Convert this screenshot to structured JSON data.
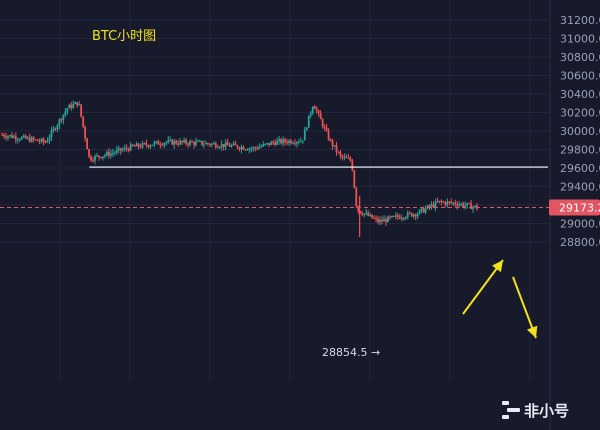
{
  "chart_data": {
    "type": "candlestick",
    "title": "BTC小时图",
    "ylim": [
      28700,
      31300
    ],
    "y_ticks": [
      31200,
      31000,
      30800,
      30600,
      30400,
      30200,
      30000,
      29800,
      29600,
      29400,
      29200,
      29000,
      28800
    ],
    "y_tick_labels": [
      "31200.00",
      "31000.00",
      "30800.00",
      "30600.00",
      "30400.00",
      "30200.00",
      "30000.00",
      "29800.00",
      "29600.00",
      "29400.00",
      "29200.00",
      "29000.00",
      "28800.00"
    ],
    "current_price": 29173.2,
    "current_price_label": "29173.2",
    "support_level": 29610,
    "low_annotation": {
      "value": 28854.5,
      "label": "28854.5 →"
    },
    "candle_summary": [
      {
        "x": 0.0,
        "price": 29960
      },
      {
        "x": 0.04,
        "price": 29920
      },
      {
        "x": 0.08,
        "price": 29880
      },
      {
        "x": 0.12,
        "price": 30250
      },
      {
        "x": 0.14,
        "price": 30310
      },
      {
        "x": 0.16,
        "price": 29700
      },
      {
        "x": 0.2,
        "price": 29760
      },
      {
        "x": 0.24,
        "price": 29830
      },
      {
        "x": 0.3,
        "price": 29880
      },
      {
        "x": 0.36,
        "price": 29870
      },
      {
        "x": 0.42,
        "price": 29840
      },
      {
        "x": 0.46,
        "price": 29810
      },
      {
        "x": 0.5,
        "price": 29880
      },
      {
        "x": 0.55,
        "price": 29900
      },
      {
        "x": 0.57,
        "price": 30300
      },
      {
        "x": 0.6,
        "price": 29900
      },
      {
        "x": 0.62,
        "price": 29720
      },
      {
        "x": 0.64,
        "price": 29680
      },
      {
        "x": 0.65,
        "price": 29150
      },
      {
        "x": 0.69,
        "price": 29020
      },
      {
        "x": 0.73,
        "price": 29080
      },
      {
        "x": 0.76,
        "price": 29110
      },
      {
        "x": 0.8,
        "price": 29230
      },
      {
        "x": 0.83,
        "price": 29220
      },
      {
        "x": 0.87,
        "price": 29173
      }
    ],
    "watermark": "非小号"
  }
}
